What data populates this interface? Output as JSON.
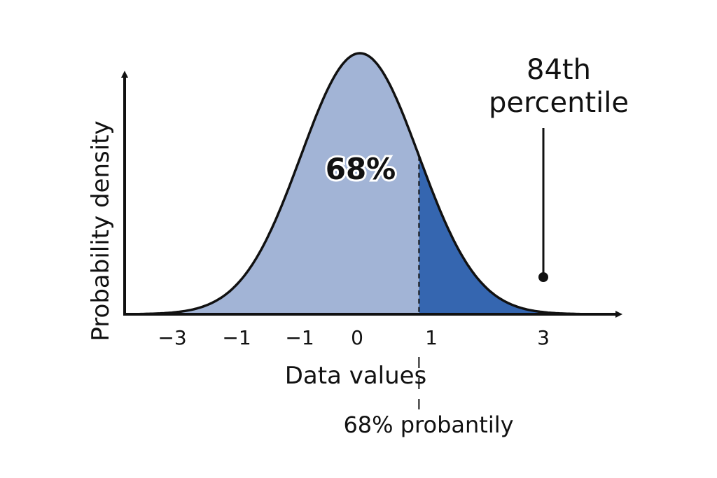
{
  "chart_data": {
    "type": "area",
    "title": "",
    "xlabel": "Data values",
    "ylabel": "Probability density",
    "xlim": [
      -3.9,
      3.9
    ],
    "tick_labels": [
      "−3",
      "−1",
      "−1",
      "0",
      "1",
      "3"
    ],
    "curve": {
      "distribution": "normal",
      "mean": 0,
      "sd": 1
    },
    "shaded_regions": [
      {
        "from": -3.9,
        "to": 1,
        "color": "#a2b4d6"
      },
      {
        "from": 1,
        "to": 3.9,
        "color": "#3566b0"
      }
    ],
    "cutoff": 1,
    "center_label": "68%",
    "annotation": {
      "line1": "84th",
      "line2": "percentile",
      "point_x": 3
    },
    "bottom_note": "68% probantily",
    "grid": false,
    "legend": "none"
  },
  "colors": {
    "light_fill": "#a2b4d6",
    "dark_fill": "#3566b0",
    "stroke": "#111111"
  }
}
